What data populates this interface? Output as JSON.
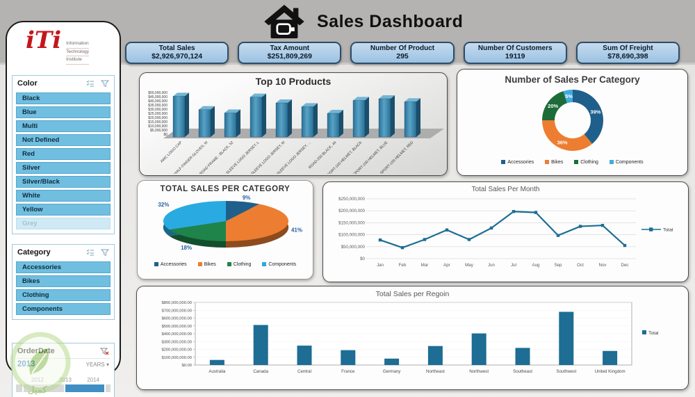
{
  "header": {
    "title": "Sales Dashboard"
  },
  "logo": {
    "mark": "iTi",
    "lines": [
      "Information",
      "Technology",
      "Institute"
    ]
  },
  "kpis": [
    {
      "label": "Total Sales",
      "value": "$2,926,970,124"
    },
    {
      "label": "Tax Amount",
      "value": "$251,809,269"
    },
    {
      "label": "Number Of Product",
      "value": "295"
    },
    {
      "label": "Number Of Customers",
      "value": "19119"
    },
    {
      "label": "Sum Of Freight",
      "value": "$78,690,398"
    }
  ],
  "slicers": {
    "color": {
      "title": "Color",
      "items": [
        "Black",
        "Blue",
        "Multi",
        "Not Defined",
        "Red",
        "Silver",
        "Silver/Black",
        "White",
        "Yellow",
        "Grey"
      ],
      "dimmed": [
        "Grey"
      ]
    },
    "category": {
      "title": "Category",
      "items": [
        "Accessories",
        "Bikes",
        "Clothing",
        "Components"
      ]
    },
    "orderdate": {
      "title": "OrderDate",
      "selected_label": "2013",
      "granularity_label": "YEARS",
      "year_labels": [
        "2012",
        "2013",
        "2014"
      ],
      "selected_year": "2013"
    }
  },
  "watermark": {
    "text": "كميل"
  },
  "colors": {
    "accent_blue": "#1d6d94",
    "kpi_fill": "#aecde9",
    "kpi_border": "#2d4d66",
    "slicer_item": "#70bfe1",
    "series_accessories": "#1F5F8B",
    "series_bikes": "#ED7D31",
    "series_clothing": "#1E6B3A",
    "series_components": "#41AADF"
  },
  "chart_data": [
    {
      "id": "top10",
      "type": "bar",
      "variant": "3d",
      "title": "Top 10 Products",
      "categories": [
        "AWC LOGO CAP",
        "HALF-FINGER GLOVES, M",
        "LL ROAD FRAME - BLACK, 52",
        "LONG-SLEEVE LOGO JERSEY, L",
        "LONG-SLEEVE LOGO JERSEY, M",
        "LONG-SLEEVE LOGO JERSEY, ...",
        "ROAD-250 BLACK, 44",
        "SPORT-100 HELMET, BLACK",
        "SPORT-100 HELMET, BLUE",
        "SPORT-100 HELMET, RED"
      ],
      "values": [
        45500000,
        29500000,
        25500000,
        44500000,
        37500000,
        33000000,
        25000000,
        40500000,
        42500000,
        39000000
      ],
      "ylim": [
        0,
        50000000
      ],
      "ytick": 5000000,
      "bar_color": "#2f7ca3",
      "grid": false,
      "legend_position": "none"
    },
    {
      "id": "donut",
      "type": "pie",
      "variant": "donut",
      "title": "Number of Sales Per Category",
      "labels": [
        "Accessories",
        "Bikes",
        "Clothing",
        "Components"
      ],
      "values": [
        39,
        36,
        20,
        5
      ],
      "data_labels": [
        "39%",
        "36%",
        "20%",
        "5%"
      ],
      "colors": [
        "#1F5F8B",
        "#ED7D31",
        "#1E6B3A",
        "#41AADF"
      ],
      "legend_position": "bottom"
    },
    {
      "id": "pie",
      "type": "pie",
      "variant": "3d",
      "title": "TOTAL SALES PER CATEGORY",
      "labels": [
        "Accessories",
        "Bikes",
        "Clothing",
        "Components"
      ],
      "values": [
        9,
        41,
        18,
        32
      ],
      "data_labels": [
        "9%",
        "41%",
        "18%",
        "32%"
      ],
      "colors": [
        "#1F5F8B",
        "#ED7D31",
        "#1E8449",
        "#29ABE2"
      ],
      "legend_position": "bottom"
    },
    {
      "id": "month",
      "type": "line",
      "title": "Total Sales Per Month",
      "categories": [
        "Jan",
        "Feb",
        "Mar",
        "Apr",
        "May",
        "Jun",
        "Jul",
        "Aug",
        "Sep",
        "Oct",
        "Nov",
        "Dec"
      ],
      "series": [
        {
          "name": "Total",
          "values": [
            78000000,
            46000000,
            80000000,
            120000000,
            80000000,
            128000000,
            197000000,
            193000000,
            97000000,
            135000000,
            139000000,
            55000000
          ]
        }
      ],
      "ylim": [
        0,
        250000000
      ],
      "ytick": 50000000,
      "line_color": "#1d6d94",
      "grid": true,
      "legend_position": "right"
    },
    {
      "id": "region",
      "type": "bar",
      "title": "Total Sales per Regoin",
      "categories": [
        "Australia",
        "Canada",
        "Central",
        "France",
        "Germany",
        "Northeast",
        "Northwest",
        "Southeast",
        "Southwest",
        "United Kingdom"
      ],
      "series": [
        {
          "name": "Total",
          "values": [
            65000000,
            512000000,
            248000000,
            190000000,
            82000000,
            243000000,
            404000000,
            219000000,
            680000000,
            180000000
          ]
        }
      ],
      "ylim": [
        0,
        800000000
      ],
      "ytick": 100000000,
      "y_decimals": 2,
      "bar_color": "#1d6d94",
      "grid": false,
      "legend_position": "right"
    }
  ]
}
